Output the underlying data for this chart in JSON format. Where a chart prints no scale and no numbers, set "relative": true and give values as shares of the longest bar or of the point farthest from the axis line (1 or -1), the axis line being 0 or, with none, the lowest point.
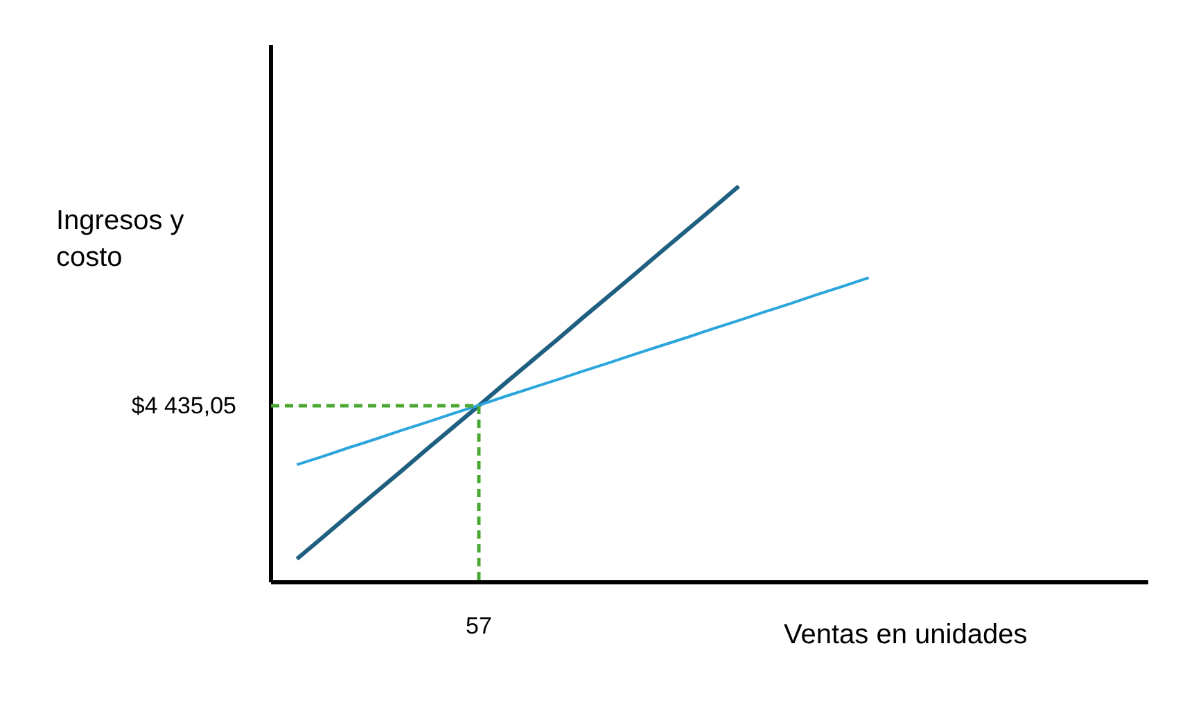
{
  "chart_data": {
    "type": "line",
    "xlabel": "Ventas en unidades",
    "ylabel": "Ingresos y costo",
    "relative": true,
    "categories": [
      null,
      null,
      null,
      null,
      null,
      null,
      null,
      null,
      null,
      null,
      null,
      null,
      null,
      null,
      null,
      null,
      null,
      null,
      null,
      null,
      null,
      null,
      null,
      null,
      null,
      null,
      null,
      null,
      null,
      null,
      null,
      null,
      null,
      null
    ],
    "annotations": [
      "57",
      "$4 435,05"
    ],
    "series": [
      {
        "color": "#1f5f80",
        "values": [
          null,
          0.059,
          0.114,
          0.17,
          0.225,
          0.28,
          0.336,
          0.391,
          0.446,
          0.502,
          0.557,
          0.612,
          0.668,
          0.723,
          0.778,
          0.834,
          0.889,
          0.944,
          1,
          null,
          null,
          null,
          null,
          null,
          null,
          null,
          null,
          null,
          null,
          null,
          null,
          null,
          null,
          null
        ],
        "line_style": "solid"
      },
      {
        "color": "#2aa6dc",
        "values": [
          null,
          0.297,
          0.318,
          0.34,
          0.361,
          0.383,
          0.404,
          0.426,
          0.447,
          0.469,
          0.49,
          0.511,
          0.533,
          0.554,
          0.576,
          0.597,
          0.618,
          0.64,
          0.661,
          0.683,
          0.704,
          0.726,
          0.747,
          0.769,
          null,
          null,
          null,
          null,
          null,
          null,
          null,
          null,
          null,
          null
        ],
        "line_style": "solid"
      },
      {
        "color": "#4aa832",
        "values": [
          0.446,
          0.446,
          0.446,
          0.446,
          0.446,
          0.446,
          0.446,
          0.446,
          0.446,
          null,
          null,
          null,
          null,
          null,
          null,
          null,
          null,
          null,
          null,
          null,
          null,
          null,
          null,
          null,
          null,
          null,
          null,
          null,
          null,
          null,
          null,
          null,
          null,
          null
        ],
        "line_style": "dashed"
      }
    ]
  }
}
